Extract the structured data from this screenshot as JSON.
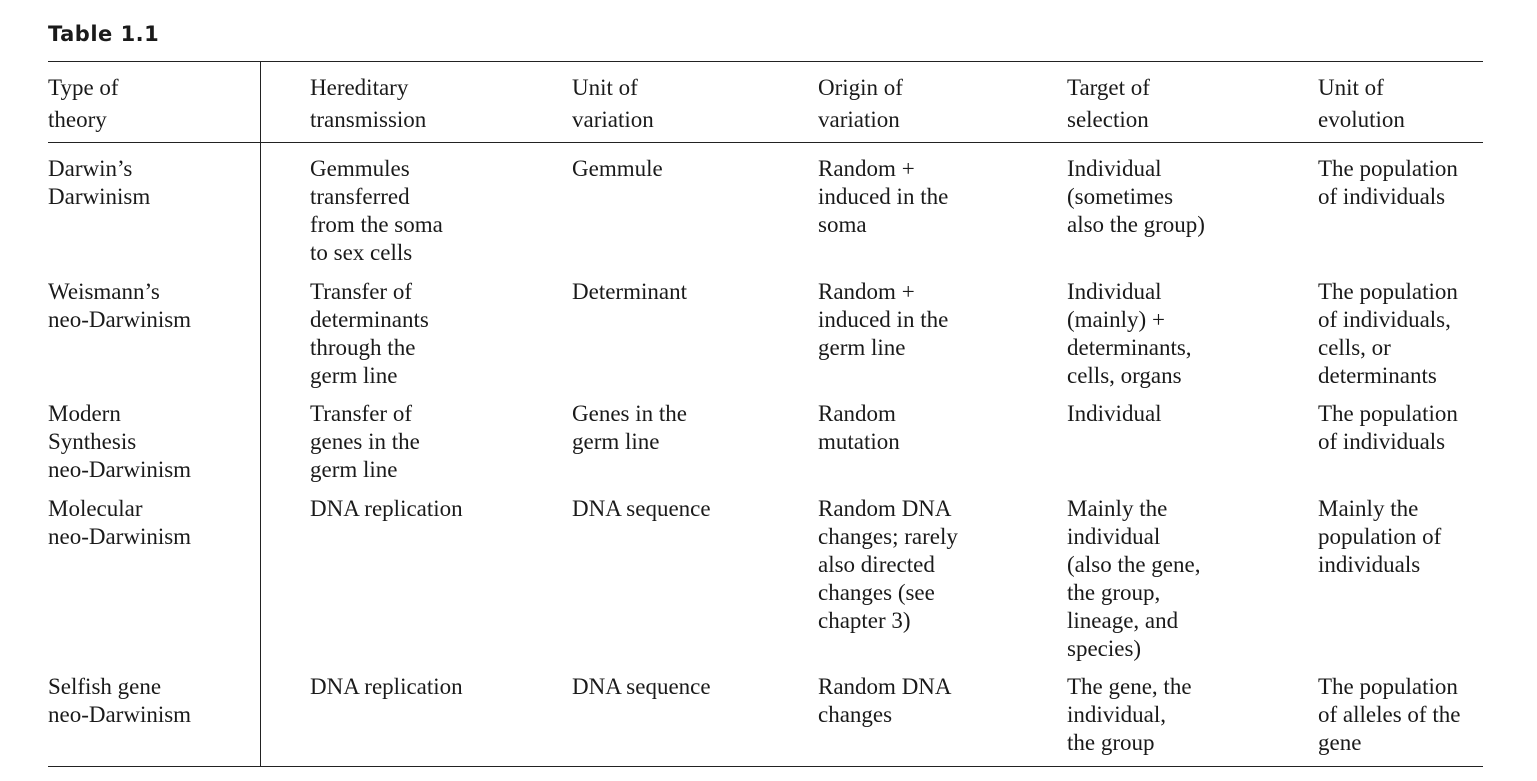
{
  "caption": "Table 1.1",
  "headers": [
    "Type of\ntheory",
    "Hereditary\ntransmission",
    "Unit of\nvariation",
    "Origin of\nvariation",
    "Target of\nselection",
    "Unit of\nevolution"
  ],
  "rows": [
    [
      "Darwin’s\nDarwinism",
      "Gemmules\ntransferred\nfrom the soma\nto sex cells",
      "Gemmule",
      "Random +\ninduced in the\nsoma",
      "Individual\n(sometimes\nalso the group)",
      "The population\nof individuals"
    ],
    [
      "Weismann’s\nneo-Darwinism",
      "Transfer of\ndeterminants\nthrough the\ngerm line",
      "Determinant",
      "Random +\ninduced in the\ngerm line",
      "Individual\n(mainly) +\ndeterminants,\ncells, organs",
      "The population\nof individuals,\ncells, or\ndeterminants"
    ],
    [
      "Modern\nSynthesis\nneo-Darwinism",
      "Transfer of\ngenes in the\ngerm line",
      "Genes in the\ngerm line",
      "Random\nmutation",
      "Individual",
      "The population\nof individuals"
    ],
    [
      "Molecular\nneo-Darwinism",
      "DNA replication",
      "DNA sequence",
      "Random DNA\nchanges; rarely\nalso directed\nchanges (see\nchapter 3)",
      "Mainly the\nindividual\n(also the gene,\nthe group,\nlineage, and\nspecies)",
      "Mainly the\npopulation of\nindividuals"
    ],
    [
      "Selfish gene\nneo-Darwinism",
      "DNA replication",
      "DNA sequence",
      "Random DNA\nchanges",
      "The gene, the\nindividual,\nthe group",
      "The population\nof alleles of the\ngene"
    ]
  ]
}
